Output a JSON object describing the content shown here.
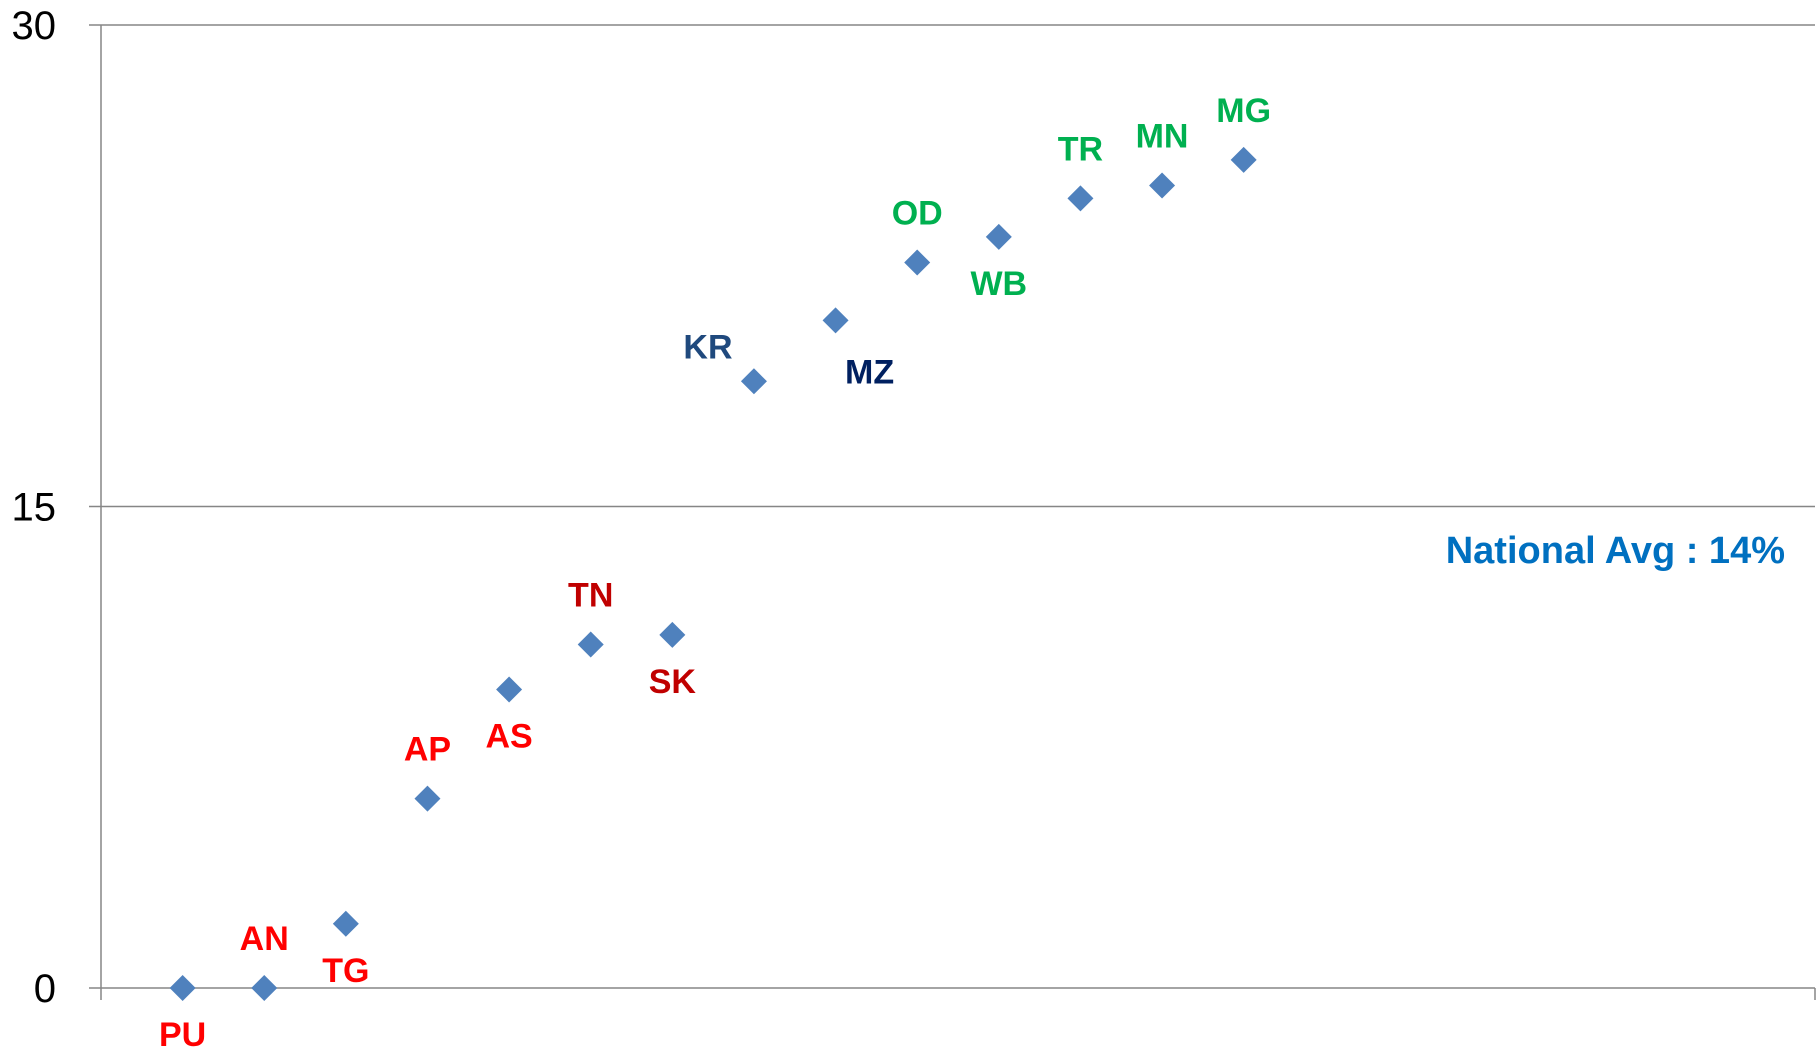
{
  "chart_data": {
    "type": "scatter",
    "title": "",
    "xlabel": "",
    "ylabel": "",
    "ylim": [
      0,
      30
    ],
    "yticks": [
      0,
      15,
      30
    ],
    "xlim": [
      0,
      21
    ],
    "grid": true,
    "marker": "diamond",
    "marker_color": "#4F81BD",
    "annotation": {
      "text": "National Avg : 14%",
      "color": "#0070C0"
    },
    "points": [
      {
        "label": "PU",
        "x": 1,
        "y": 0,
        "color": "#FF0000",
        "label_pos": "below"
      },
      {
        "label": "AN",
        "x": 2,
        "y": 0,
        "color": "#FF0000",
        "label_pos": "above"
      },
      {
        "label": "TG",
        "x": 3,
        "y": 2,
        "color": "#FF0000",
        "label_pos": "below"
      },
      {
        "label": "AP",
        "x": 4,
        "y": 5.9,
        "color": "#FF0000",
        "label_pos": "above"
      },
      {
        "label": "AS",
        "x": 5,
        "y": 9.3,
        "color": "#FF0000",
        "label_pos": "below"
      },
      {
        "label": "TN",
        "x": 6,
        "y": 10.7,
        "color": "#C00000",
        "label_pos": "above"
      },
      {
        "label": "SK",
        "x": 7,
        "y": 11,
        "color": "#C00000",
        "label_pos": "below"
      },
      {
        "label": "KR",
        "x": 8,
        "y": 18.9,
        "color": "#1F497D",
        "label_pos": "above-left"
      },
      {
        "label": "MZ",
        "x": 9,
        "y": 20.8,
        "color": "#002060",
        "label_pos": "below-right"
      },
      {
        "label": "OD",
        "x": 10,
        "y": 22.6,
        "color": "#00B050",
        "label_pos": "above"
      },
      {
        "label": "WB",
        "x": 11,
        "y": 23.4,
        "color": "#00B050",
        "label_pos": "below"
      },
      {
        "label": "TR",
        "x": 12,
        "y": 24.6,
        "color": "#00B050",
        "label_pos": "above"
      },
      {
        "label": "MN",
        "x": 13,
        "y": 25,
        "color": "#00B050",
        "label_pos": "above"
      },
      {
        "label": "MG",
        "x": 14,
        "y": 25.8,
        "color": "#00B050",
        "label_pos": "above"
      }
    ]
  }
}
